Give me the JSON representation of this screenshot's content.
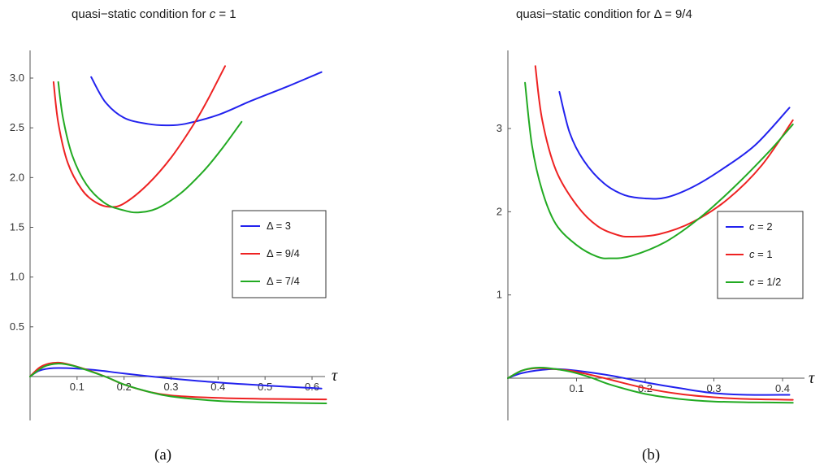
{
  "chart_data": [
    {
      "type": "line",
      "title": "quasi−static condition for c = 1",
      "title_prefix": "quasi−static condition for ",
      "title_var": "c",
      "title_suffix": " = 1",
      "xlabel": "τ",
      "sublabel": "(a)",
      "xlim": [
        0,
        0.64
      ],
      "ylim": [
        -0.32,
        3.3
      ],
      "xticks": [
        0.1,
        0.2,
        0.3,
        0.4,
        0.5,
        0.6
      ],
      "xtick_labels": [
        "0.1",
        "0.2",
        "0.3",
        "0.4",
        "0.5",
        "0.6"
      ],
      "yticks": [
        0.5,
        1.0,
        1.5,
        2.0,
        2.5,
        3.0
      ],
      "ytick_labels": [
        "0.5",
        "1.0",
        "1.5",
        "2.0",
        "2.5",
        "3.0"
      ],
      "legend_position": "right",
      "series": [
        {
          "name": "Δ = 3",
          "color": "#2222ee",
          "upper": [
            [
              0.13,
              3.01
            ],
            [
              0.16,
              2.76
            ],
            [
              0.2,
              2.6
            ],
            [
              0.25,
              2.54
            ],
            [
              0.29,
              2.525
            ],
            [
              0.33,
              2.54
            ],
            [
              0.4,
              2.63
            ],
            [
              0.47,
              2.77
            ],
            [
              0.55,
              2.92
            ],
            [
              0.62,
              3.06
            ]
          ],
          "lower": [
            [
              0.0,
              0.0
            ],
            [
              0.02,
              0.06
            ],
            [
              0.05,
              0.085
            ],
            [
              0.1,
              0.08
            ],
            [
              0.15,
              0.06
            ],
            [
              0.2,
              0.03
            ],
            [
              0.3,
              -0.02
            ],
            [
              0.4,
              -0.06
            ],
            [
              0.5,
              -0.09
            ],
            [
              0.62,
              -0.12
            ]
          ]
        },
        {
          "name": "Δ = 9/4",
          "color": "#ee2222",
          "upper": [
            [
              0.05,
              2.96
            ],
            [
              0.06,
              2.55
            ],
            [
              0.08,
              2.15
            ],
            [
              0.11,
              1.88
            ],
            [
              0.14,
              1.75
            ],
            [
              0.17,
              1.705
            ],
            [
              0.2,
              1.74
            ],
            [
              0.25,
              1.93
            ],
            [
              0.3,
              2.2
            ],
            [
              0.35,
              2.55
            ],
            [
              0.38,
              2.8
            ],
            [
              0.415,
              3.12
            ]
          ],
          "lower": [
            [
              0.0,
              0.0
            ],
            [
              0.02,
              0.09
            ],
            [
              0.04,
              0.13
            ],
            [
              0.06,
              0.14
            ],
            [
              0.08,
              0.125
            ],
            [
              0.12,
              0.07
            ],
            [
              0.16,
              0.0
            ],
            [
              0.2,
              -0.08
            ],
            [
              0.25,
              -0.15
            ],
            [
              0.3,
              -0.19
            ],
            [
              0.4,
              -0.215
            ],
            [
              0.5,
              -0.225
            ],
            [
              0.63,
              -0.23
            ]
          ]
        },
        {
          "name": "Δ = 7/4",
          "color": "#22aa22",
          "upper": [
            [
              0.06,
              2.96
            ],
            [
              0.07,
              2.6
            ],
            [
              0.09,
              2.22
            ],
            [
              0.12,
              1.93
            ],
            [
              0.16,
              1.74
            ],
            [
              0.2,
              1.67
            ],
            [
              0.23,
              1.65
            ],
            [
              0.27,
              1.69
            ],
            [
              0.32,
              1.84
            ],
            [
              0.37,
              2.07
            ],
            [
              0.41,
              2.3
            ],
            [
              0.45,
              2.56
            ]
          ],
          "lower": [
            [
              0.0,
              0.0
            ],
            [
              0.03,
              0.1
            ],
            [
              0.06,
              0.13
            ],
            [
              0.09,
              0.11
            ],
            [
              0.13,
              0.05
            ],
            [
              0.17,
              -0.02
            ],
            [
              0.2,
              -0.08
            ],
            [
              0.25,
              -0.15
            ],
            [
              0.3,
              -0.2
            ],
            [
              0.4,
              -0.245
            ],
            [
              0.5,
              -0.26
            ],
            [
              0.63,
              -0.27
            ]
          ]
        }
      ]
    },
    {
      "type": "line",
      "title": "quasi−static condition for Δ = 9/4",
      "title_prefix": "quasi−static condition for Δ = 9/4",
      "title_var": "",
      "title_suffix": "",
      "xlabel": "τ",
      "sublabel": "(b)",
      "xlim": [
        0,
        0.435
      ],
      "ylim": [
        -0.42,
        3.9
      ],
      "xticks": [
        0.1,
        0.2,
        0.3,
        0.4
      ],
      "xtick_labels": [
        "0.1",
        "0.2",
        "0.3",
        "0.4"
      ],
      "yticks": [
        1,
        2,
        3
      ],
      "ytick_labels": [
        "1",
        "2",
        "3"
      ],
      "legend_position": "right",
      "series": [
        {
          "name": "c = 2",
          "var": "c",
          "suffix": " = 2",
          "color": "#2222ee",
          "upper": [
            [
              0.075,
              3.44
            ],
            [
              0.09,
              2.95
            ],
            [
              0.11,
              2.62
            ],
            [
              0.14,
              2.34
            ],
            [
              0.17,
              2.2
            ],
            [
              0.2,
              2.16
            ],
            [
              0.23,
              2.17
            ],
            [
              0.27,
              2.3
            ],
            [
              0.31,
              2.5
            ],
            [
              0.36,
              2.8
            ],
            [
              0.41,
              3.25
            ]
          ],
          "lower": [
            [
              0.0,
              0.0
            ],
            [
              0.02,
              0.06
            ],
            [
              0.05,
              0.1
            ],
            [
              0.07,
              0.11
            ],
            [
              0.1,
              0.09
            ],
            [
              0.15,
              0.03
            ],
            [
              0.2,
              -0.05
            ],
            [
              0.25,
              -0.12
            ],
            [
              0.3,
              -0.18
            ],
            [
              0.35,
              -0.2
            ],
            [
              0.41,
              -0.2
            ]
          ]
        },
        {
          "name": "c = 1",
          "var": "c",
          "suffix": " = 1",
          "color": "#ee2222",
          "upper": [
            [
              0.04,
              3.75
            ],
            [
              0.05,
              3.1
            ],
            [
              0.07,
              2.5
            ],
            [
              0.1,
              2.08
            ],
            [
              0.13,
              1.83
            ],
            [
              0.16,
              1.72
            ],
            [
              0.18,
              1.7
            ],
            [
              0.22,
              1.73
            ],
            [
              0.27,
              1.88
            ],
            [
              0.32,
              2.15
            ],
            [
              0.37,
              2.56
            ],
            [
              0.415,
              3.1
            ]
          ],
          "lower": [
            [
              0.0,
              0.0
            ],
            [
              0.02,
              0.09
            ],
            [
              0.04,
              0.12
            ],
            [
              0.06,
              0.115
            ],
            [
              0.09,
              0.09
            ],
            [
              0.12,
              0.04
            ],
            [
              0.15,
              -0.02
            ],
            [
              0.2,
              -0.12
            ],
            [
              0.25,
              -0.19
            ],
            [
              0.3,
              -0.23
            ],
            [
              0.35,
              -0.25
            ],
            [
              0.415,
              -0.26
            ]
          ]
        },
        {
          "name": "c = 1/2",
          "var": "c",
          "suffix": " = 1/2",
          "color": "#22aa22",
          "upper": [
            [
              0.025,
              3.55
            ],
            [
              0.035,
              2.8
            ],
            [
              0.05,
              2.25
            ],
            [
              0.07,
              1.85
            ],
            [
              0.1,
              1.6
            ],
            [
              0.13,
              1.46
            ],
            [
              0.15,
              1.44
            ],
            [
              0.18,
              1.47
            ],
            [
              0.23,
              1.64
            ],
            [
              0.28,
              1.93
            ],
            [
              0.33,
              2.3
            ],
            [
              0.38,
              2.72
            ],
            [
              0.415,
              3.05
            ]
          ],
          "lower": [
            [
              0.0,
              0.0
            ],
            [
              0.02,
              0.09
            ],
            [
              0.04,
              0.125
            ],
            [
              0.06,
              0.12
            ],
            [
              0.09,
              0.08
            ],
            [
              0.12,
              0.01
            ],
            [
              0.15,
              -0.08
            ],
            [
              0.2,
              -0.19
            ],
            [
              0.25,
              -0.25
            ],
            [
              0.3,
              -0.28
            ],
            [
              0.35,
              -0.29
            ],
            [
              0.415,
              -0.295
            ]
          ]
        }
      ]
    }
  ]
}
